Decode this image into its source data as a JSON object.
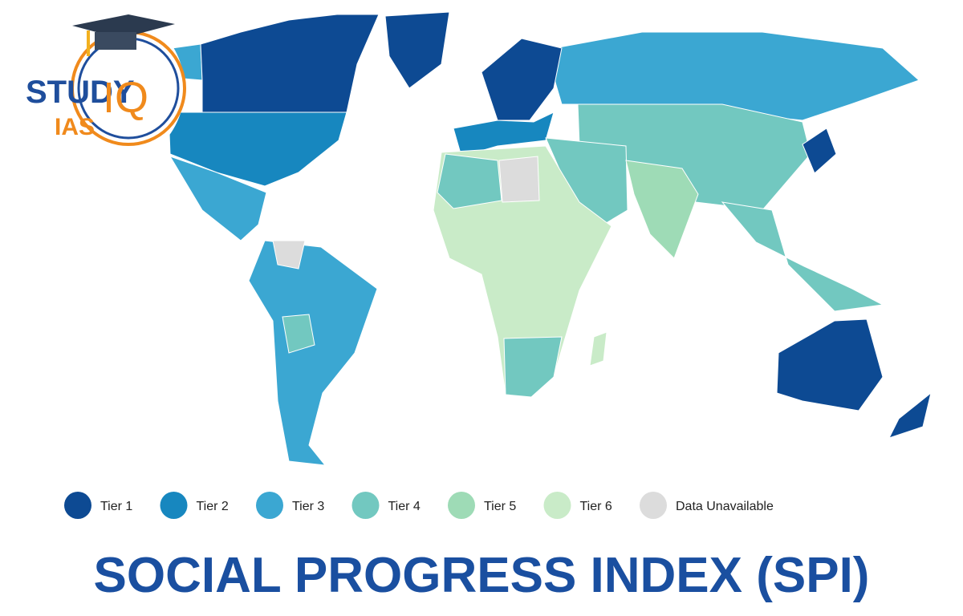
{
  "logo": {
    "brand": "STUDY",
    "mark": "IQ",
    "sub": "IAS"
  },
  "legend": [
    {
      "label": "Tier 1",
      "color": "#0d4a93"
    },
    {
      "label": "Tier 2",
      "color": "#1787bf"
    },
    {
      "label": "Tier 3",
      "color": "#3ba7d2"
    },
    {
      "label": "Tier 4",
      "color": "#72c8c0"
    },
    {
      "label": "Tier 5",
      "color": "#9edbb6"
    },
    {
      "label": "Tier 6",
      "color": "#c9ebc8"
    },
    {
      "label": "Data Unavailable",
      "color": "#dcdcdc"
    }
  ],
  "title": "SOCIAL PROGRESS INDEX (SPI)"
}
